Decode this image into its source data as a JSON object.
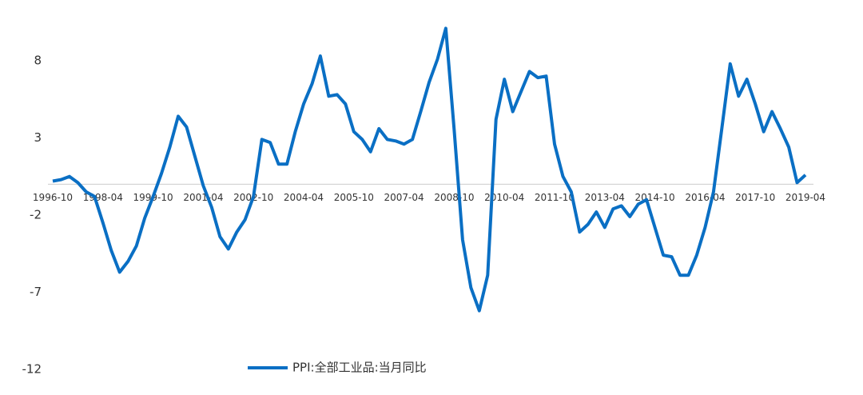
{
  "chart_data": {
    "type": "line",
    "categories": [
      "1996-10",
      null,
      null,
      null,
      null,
      null,
      "1998-04",
      null,
      null,
      null,
      null,
      null,
      "1999-10",
      null,
      null,
      null,
      null,
      null,
      "2001-04",
      null,
      null,
      null,
      null,
      null,
      "2002-10",
      null,
      null,
      null,
      null,
      null,
      "2004-04",
      null,
      null,
      null,
      null,
      null,
      "2005-10",
      null,
      null,
      null,
      null,
      null,
      "2007-04",
      null,
      null,
      null,
      null,
      null,
      "2008-10",
      null,
      null,
      null,
      null,
      null,
      "2010-04",
      null,
      null,
      null,
      null,
      null,
      "2011-10",
      null,
      null,
      null,
      null,
      null,
      "2013-04",
      null,
      null,
      null,
      null,
      null,
      "2014-10",
      null,
      null,
      null,
      null,
      null,
      "2016-04",
      null,
      null,
      null,
      null,
      null,
      "2017-10",
      null,
      null,
      null,
      null,
      null,
      "2019-04"
    ],
    "series": [
      {
        "name": "PPI:全部工业品:当月同比",
        "color": "#0a6fc4",
        "values": [
          0.2,
          0.3,
          0.5,
          0.1,
          -0.5,
          -0.8,
          -2.5,
          -4.3,
          -5.7,
          -5.0,
          -4.0,
          -2.2,
          -0.8,
          0.7,
          2.4,
          4.4,
          3.7,
          1.8,
          -0.1,
          -1.5,
          -3.4,
          -4.2,
          -3.1,
          -2.3,
          -0.8,
          2.9,
          2.7,
          1.3,
          1.3,
          3.4,
          5.2,
          6.5,
          8.3,
          5.7,
          5.8,
          5.2,
          3.4,
          2.9,
          2.1,
          3.6,
          2.9,
          2.8,
          2.6,
          2.9,
          4.7,
          6.6,
          8.1,
          10.1,
          3.5,
          -3.6,
          -6.7,
          -8.2,
          -5.9,
          4.2,
          6.8,
          4.7,
          6.0,
          7.3,
          6.9,
          7.0,
          2.6,
          0.5,
          -0.5,
          -3.1,
          -2.6,
          -1.8,
          -2.8,
          -1.6,
          -1.4,
          -2.1,
          -1.3,
          -1.0,
          -2.8,
          -4.6,
          -4.7,
          -5.9,
          -5.9,
          -4.6,
          -2.8,
          -0.5,
          3.6,
          7.8,
          5.7,
          6.8,
          5.2,
          3.4,
          4.7,
          3.6,
          2.4,
          0.1,
          0.6
        ]
      }
    ],
    "ylim": [
      -12,
      11
    ],
    "yticks": [
      8,
      3,
      -2,
      -7,
      -12
    ],
    "grid": false,
    "legend": "bottom"
  }
}
